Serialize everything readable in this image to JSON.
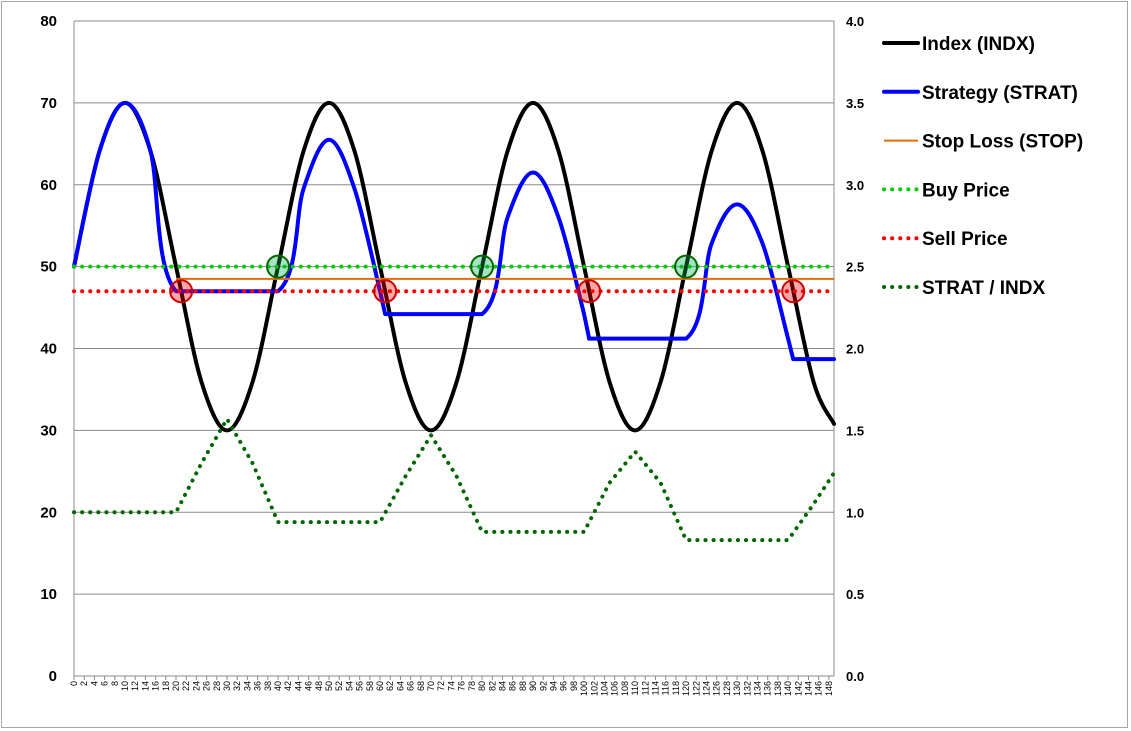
{
  "chart_data": {
    "type": "line",
    "title": "",
    "xlabel": "",
    "ylabel": "",
    "x_range": [
      0,
      149
    ],
    "x_tick_step": 2,
    "y_left": {
      "range": [
        0,
        80
      ],
      "ticks": [
        "0",
        "10",
        "20",
        "30",
        "40",
        "50",
        "60",
        "70",
        "80"
      ]
    },
    "y_right": {
      "range": [
        0,
        4
      ],
      "ticks": [
        "0.0",
        "0.5",
        "1.0",
        "1.5",
        "2.0",
        "2.5",
        "3.0",
        "3.5",
        "4.0"
      ]
    },
    "grid": true,
    "legend_position": "right",
    "series": [
      {
        "name": "Index (INDX)",
        "color": "#000000",
        "axis": "left",
        "style": "solid",
        "points": [
          [
            0,
            50
          ],
          [
            5,
            64.1
          ],
          [
            10,
            70
          ],
          [
            15,
            64.1
          ],
          [
            20,
            50
          ],
          [
            25,
            35.9
          ],
          [
            30,
            30
          ],
          [
            35,
            35.9
          ],
          [
            40,
            50
          ],
          [
            45,
            64.1
          ],
          [
            50,
            70
          ],
          [
            55,
            64.1
          ],
          [
            60,
            50
          ],
          [
            65,
            35.9
          ],
          [
            70,
            30
          ],
          [
            75,
            35.9
          ],
          [
            80,
            50
          ],
          [
            85,
            64.1
          ],
          [
            90,
            70
          ],
          [
            95,
            64.1
          ],
          [
            100,
            50
          ],
          [
            105,
            35.9
          ],
          [
            110,
            30
          ],
          [
            115,
            35.9
          ],
          [
            120,
            50
          ],
          [
            125,
            64.1
          ],
          [
            130,
            70
          ],
          [
            135,
            64.1
          ],
          [
            140,
            50
          ],
          [
            145,
            35.9
          ],
          [
            149,
            30.8
          ]
        ]
      },
      {
        "name": "Strategy (STRAT)",
        "color": "#0000ff",
        "axis": "left",
        "style": "solid",
        "points": [
          [
            0,
            50
          ],
          [
            5,
            64.1
          ],
          [
            10,
            70
          ],
          [
            15,
            64.1
          ],
          [
            20,
            47
          ],
          [
            40,
            47
          ],
          [
            45,
            59.5
          ],
          [
            50,
            65.5
          ],
          [
            55,
            59.5
          ],
          [
            60,
            47
          ],
          [
            61,
            44.2
          ],
          [
            80,
            44.2
          ],
          [
            85,
            56
          ],
          [
            90,
            61.5
          ],
          [
            95,
            56
          ],
          [
            100,
            44.2
          ],
          [
            101,
            41.2
          ],
          [
            120,
            41.2
          ],
          [
            125,
            52.8
          ],
          [
            130,
            57.6
          ],
          [
            135,
            52.8
          ],
          [
            140,
            41.2
          ],
          [
            141,
            38.7
          ],
          [
            149,
            38.7
          ]
        ]
      },
      {
        "name": "Stop Loss (STOP)",
        "color": "#e46c0a",
        "axis": "left",
        "style": "solid",
        "points": [
          [
            20,
            48.5
          ],
          [
            149,
            48.5
          ]
        ]
      },
      {
        "name": "Buy Price",
        "color": "#00cc00",
        "axis": "left",
        "style": "dotted",
        "points": [
          [
            0,
            50
          ],
          [
            149,
            50
          ]
        ]
      },
      {
        "name": "Sell Price",
        "color": "#ff0000",
        "axis": "left",
        "style": "dotted",
        "points": [
          [
            0,
            47
          ],
          [
            149,
            47
          ]
        ]
      },
      {
        "name": "STRAT / INDX",
        "color": "#006600",
        "axis": "right",
        "style": "dotted",
        "points": [
          [
            0,
            1.0
          ],
          [
            20,
            1.0
          ],
          [
            25,
            1.3
          ],
          [
            30,
            1.57
          ],
          [
            35,
            1.3
          ],
          [
            40,
            0.94
          ],
          [
            60,
            0.94
          ],
          [
            65,
            1.22
          ],
          [
            70,
            1.47
          ],
          [
            75,
            1.22
          ],
          [
            80,
            0.88
          ],
          [
            100,
            0.88
          ],
          [
            105,
            1.18
          ],
          [
            110,
            1.37
          ],
          [
            115,
            1.18
          ],
          [
            120,
            0.83
          ],
          [
            140,
            0.83
          ],
          [
            145,
            1.05
          ],
          [
            149,
            1.24
          ]
        ]
      }
    ],
    "markers": [
      {
        "type": "buy",
        "x": 40,
        "y": 50,
        "color": "#00b050"
      },
      {
        "type": "buy",
        "x": 80,
        "y": 50,
        "color": "#00b050"
      },
      {
        "type": "buy",
        "x": 120,
        "y": 50,
        "color": "#00b050"
      },
      {
        "type": "sell",
        "x": 21,
        "y": 47,
        "color": "#ff0000"
      },
      {
        "type": "sell",
        "x": 61,
        "y": 47,
        "color": "#ff0000"
      },
      {
        "type": "sell",
        "x": 101,
        "y": 47,
        "color": "#ff0000"
      },
      {
        "type": "sell",
        "x": 141,
        "y": 47,
        "color": "#ff0000"
      }
    ]
  }
}
